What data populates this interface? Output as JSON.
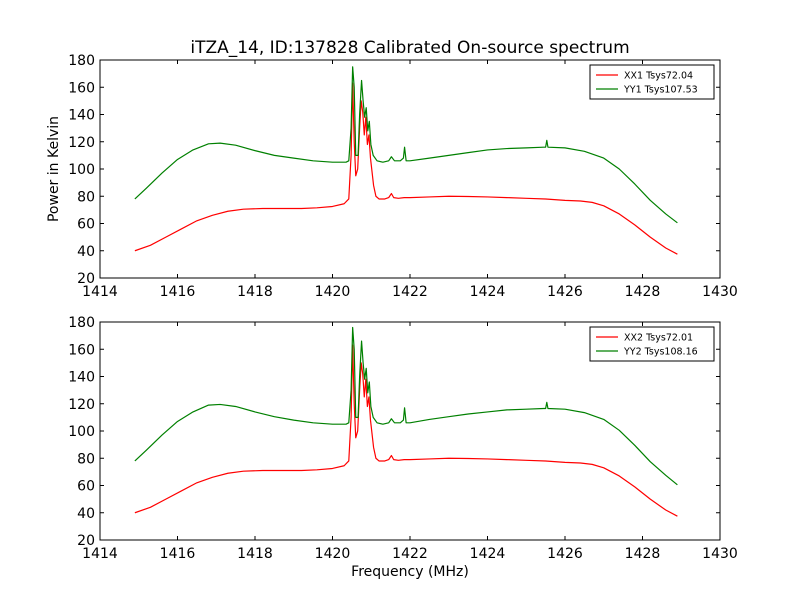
{
  "chart_data": [
    {
      "type": "line",
      "title": "iTZA_14, ID:137828 Calibrated On-source spectrum",
      "xlabel": "",
      "ylabel": "Power in Kelvin",
      "xlim": [
        1414,
        1430
      ],
      "ylim": [
        20,
        180
      ],
      "xticks": [
        1414,
        1416,
        1418,
        1420,
        1422,
        1424,
        1426,
        1428,
        1430
      ],
      "yticks": [
        20,
        40,
        60,
        80,
        100,
        120,
        140,
        160,
        180
      ],
      "legend_position": "top-right",
      "grid": false,
      "series": [
        {
          "name": "XX1 Tsys72.04",
          "color": "#ff0000",
          "points": [
            [
              1414.9,
              40
            ],
            [
              1415.3,
              44
            ],
            [
              1415.7,
              50
            ],
            [
              1416.1,
              56
            ],
            [
              1416.5,
              62
            ],
            [
              1416.9,
              66
            ],
            [
              1417.3,
              69
            ],
            [
              1417.7,
              70.5
            ],
            [
              1418.2,
              71
            ],
            [
              1418.7,
              71
            ],
            [
              1419.2,
              71
            ],
            [
              1419.6,
              71.5
            ],
            [
              1420.0,
              72.5
            ],
            [
              1420.3,
              74.5
            ],
            [
              1420.42,
              78
            ],
            [
              1420.48,
              110
            ],
            [
              1420.52,
              163
            ],
            [
              1420.56,
              120
            ],
            [
              1420.6,
              95
            ],
            [
              1420.65,
              100
            ],
            [
              1420.7,
              130
            ],
            [
              1420.74,
              150
            ],
            [
              1420.78,
              142
            ],
            [
              1420.82,
              125
            ],
            [
              1420.86,
              138
            ],
            [
              1420.9,
              118
            ],
            [
              1420.94,
              125
            ],
            [
              1420.98,
              108
            ],
            [
              1421.02,
              98
            ],
            [
              1421.06,
              88
            ],
            [
              1421.12,
              80
            ],
            [
              1421.2,
              78
            ],
            [
              1421.35,
              78
            ],
            [
              1421.45,
              79
            ],
            [
              1421.52,
              82
            ],
            [
              1421.58,
              79
            ],
            [
              1421.7,
              78.5
            ],
            [
              1421.85,
              79
            ],
            [
              1422.0,
              79
            ],
            [
              1422.5,
              79.5
            ],
            [
              1423.0,
              80
            ],
            [
              1423.5,
              79.8
            ],
            [
              1424.0,
              79.5
            ],
            [
              1424.5,
              79
            ],
            [
              1425.0,
              78.5
            ],
            [
              1425.5,
              78
            ],
            [
              1426.0,
              77
            ],
            [
              1426.4,
              76.5
            ],
            [
              1426.7,
              75.5
            ],
            [
              1427.0,
              73
            ],
            [
              1427.4,
              67
            ],
            [
              1427.8,
              59
            ],
            [
              1428.2,
              50
            ],
            [
              1428.6,
              42
            ],
            [
              1428.9,
              37.5
            ]
          ]
        },
        {
          "name": "YY1 Tsys107.53",
          "color": "#008000",
          "points": [
            [
              1414.9,
              78
            ],
            [
              1415.2,
              86
            ],
            [
              1415.6,
              97
            ],
            [
              1416.0,
              107
            ],
            [
              1416.4,
              114
            ],
            [
              1416.8,
              118.5
            ],
            [
              1417.1,
              119
            ],
            [
              1417.5,
              117.5
            ],
            [
              1418.0,
              113.5
            ],
            [
              1418.5,
              110
            ],
            [
              1419.0,
              108
            ],
            [
              1419.5,
              106
            ],
            [
              1420.0,
              105
            ],
            [
              1420.35,
              105
            ],
            [
              1420.42,
              106
            ],
            [
              1420.48,
              130
            ],
            [
              1420.52,
              175
            ],
            [
              1420.56,
              160
            ],
            [
              1420.6,
              110
            ],
            [
              1420.66,
              110
            ],
            [
              1420.7,
              140
            ],
            [
              1420.75,
              165
            ],
            [
              1420.79,
              150
            ],
            [
              1420.83,
              138
            ],
            [
              1420.87,
              145
            ],
            [
              1420.91,
              128
            ],
            [
              1420.95,
              135
            ],
            [
              1420.99,
              118
            ],
            [
              1421.05,
              110
            ],
            [
              1421.15,
              106
            ],
            [
              1421.3,
              105
            ],
            [
              1421.45,
              106
            ],
            [
              1421.52,
              109
            ],
            [
              1421.6,
              106
            ],
            [
              1421.75,
              106
            ],
            [
              1421.83,
              108
            ],
            [
              1421.86,
              116
            ],
            [
              1421.9,
              106
            ],
            [
              1422.0,
              106
            ],
            [
              1422.5,
              108
            ],
            [
              1423.0,
              110
            ],
            [
              1423.5,
              112
            ],
            [
              1424.0,
              114
            ],
            [
              1424.5,
              115
            ],
            [
              1425.0,
              115.5
            ],
            [
              1425.45,
              116
            ],
            [
              1425.5,
              116
            ],
            [
              1425.53,
              121
            ],
            [
              1425.56,
              116
            ],
            [
              1426.0,
              115.5
            ],
            [
              1426.5,
              113
            ],
            [
              1427.0,
              108
            ],
            [
              1427.4,
              100
            ],
            [
              1427.8,
              89
            ],
            [
              1428.2,
              77
            ],
            [
              1428.6,
              67
            ],
            [
              1428.9,
              60.5
            ]
          ]
        }
      ]
    },
    {
      "type": "line",
      "title": "",
      "xlabel": "Frequency (MHz)",
      "ylabel": "",
      "xlim": [
        1414,
        1430
      ],
      "ylim": [
        20,
        180
      ],
      "xticks": [
        1414,
        1416,
        1418,
        1420,
        1422,
        1424,
        1426,
        1428,
        1430
      ],
      "yticks": [
        20,
        40,
        60,
        80,
        100,
        120,
        140,
        160,
        180
      ],
      "legend_position": "top-right",
      "grid": false,
      "series": [
        {
          "name": "XX2 Tsys72.01",
          "color": "#ff0000",
          "points": [
            [
              1414.9,
              40
            ],
            [
              1415.3,
              44
            ],
            [
              1415.7,
              50
            ],
            [
              1416.1,
              56
            ],
            [
              1416.5,
              62
            ],
            [
              1416.9,
              66
            ],
            [
              1417.3,
              69
            ],
            [
              1417.7,
              70.5
            ],
            [
              1418.2,
              71
            ],
            [
              1418.7,
              71
            ],
            [
              1419.2,
              71
            ],
            [
              1419.6,
              71.5
            ],
            [
              1420.0,
              72.5
            ],
            [
              1420.3,
              74.5
            ],
            [
              1420.42,
              78
            ],
            [
              1420.48,
              110
            ],
            [
              1420.52,
              163
            ],
            [
              1420.56,
              120
            ],
            [
              1420.6,
              95
            ],
            [
              1420.65,
              100
            ],
            [
              1420.7,
              130
            ],
            [
              1420.74,
              150
            ],
            [
              1420.78,
              142
            ],
            [
              1420.82,
              125
            ],
            [
              1420.86,
              138
            ],
            [
              1420.9,
              118
            ],
            [
              1420.94,
              125
            ],
            [
              1420.98,
              108
            ],
            [
              1421.02,
              98
            ],
            [
              1421.06,
              88
            ],
            [
              1421.12,
              80
            ],
            [
              1421.2,
              78
            ],
            [
              1421.35,
              78
            ],
            [
              1421.45,
              79
            ],
            [
              1421.52,
              82
            ],
            [
              1421.58,
              79
            ],
            [
              1421.7,
              78.5
            ],
            [
              1421.85,
              79
            ],
            [
              1422.0,
              79
            ],
            [
              1422.5,
              79.5
            ],
            [
              1423.0,
              80
            ],
            [
              1423.5,
              79.8
            ],
            [
              1424.0,
              79.5
            ],
            [
              1424.5,
              79
            ],
            [
              1425.0,
              78.5
            ],
            [
              1425.5,
              78
            ],
            [
              1426.0,
              77
            ],
            [
              1426.4,
              76.5
            ],
            [
              1426.7,
              75.5
            ],
            [
              1427.0,
              73
            ],
            [
              1427.4,
              67
            ],
            [
              1427.8,
              59
            ],
            [
              1428.2,
              50
            ],
            [
              1428.6,
              42
            ],
            [
              1428.9,
              37.5
            ]
          ]
        },
        {
          "name": "YY2 Tsys108.16",
          "color": "#008000",
          "points": [
            [
              1414.9,
              78
            ],
            [
              1415.2,
              86
            ],
            [
              1415.6,
              97
            ],
            [
              1416.0,
              107
            ],
            [
              1416.4,
              114
            ],
            [
              1416.8,
              119
            ],
            [
              1417.1,
              119.5
            ],
            [
              1417.5,
              118
            ],
            [
              1418.0,
              114
            ],
            [
              1418.5,
              110.5
            ],
            [
              1419.0,
              108
            ],
            [
              1419.5,
              106
            ],
            [
              1420.0,
              105
            ],
            [
              1420.35,
              105
            ],
            [
              1420.42,
              106
            ],
            [
              1420.48,
              130
            ],
            [
              1420.52,
              176
            ],
            [
              1420.56,
              160
            ],
            [
              1420.6,
              110
            ],
            [
              1420.66,
              110
            ],
            [
              1420.7,
              140
            ],
            [
              1420.75,
              166
            ],
            [
              1420.79,
              150
            ],
            [
              1420.83,
              138
            ],
            [
              1420.87,
              146
            ],
            [
              1420.91,
              128
            ],
            [
              1420.95,
              136
            ],
            [
              1420.99,
              118
            ],
            [
              1421.05,
              110
            ],
            [
              1421.15,
              106
            ],
            [
              1421.3,
              105
            ],
            [
              1421.45,
              106
            ],
            [
              1421.52,
              109
            ],
            [
              1421.6,
              106
            ],
            [
              1421.75,
              106
            ],
            [
              1421.83,
              108
            ],
            [
              1421.86,
              117
            ],
            [
              1421.9,
              106
            ],
            [
              1422.0,
              106
            ],
            [
              1422.5,
              108.5
            ],
            [
              1423.0,
              110.5
            ],
            [
              1423.5,
              112.5
            ],
            [
              1424.0,
              114
            ],
            [
              1424.5,
              115.5
            ],
            [
              1425.0,
              116
            ],
            [
              1425.45,
              116.5
            ],
            [
              1425.5,
              116.5
            ],
            [
              1425.53,
              121
            ],
            [
              1425.56,
              116.5
            ],
            [
              1426.0,
              116
            ],
            [
              1426.5,
              113.5
            ],
            [
              1427.0,
              108.5
            ],
            [
              1427.4,
              100.5
            ],
            [
              1427.8,
              89.5
            ],
            [
              1428.2,
              77.5
            ],
            [
              1428.6,
              67.5
            ],
            [
              1428.9,
              60.5
            ]
          ]
        }
      ]
    }
  ]
}
